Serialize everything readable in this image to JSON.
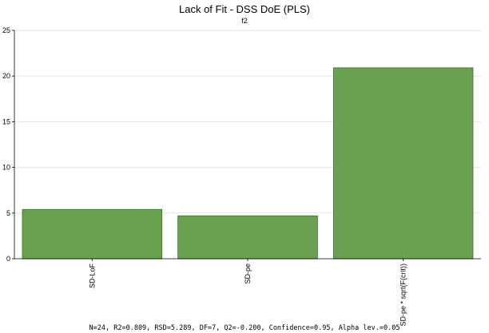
{
  "chart_data": {
    "type": "bar",
    "title": "Lack of Fit - DSS DoE (PLS)",
    "subtitle": "f2",
    "categories": [
      "SD-LoF",
      "SD-pe",
      "SD-pe * sqrt(F(crit))"
    ],
    "values": [
      5.4,
      4.7,
      20.9
    ],
    "ylim": [
      0,
      25
    ],
    "yticks": [
      0,
      5,
      10,
      15,
      20,
      25
    ],
    "bar_color": "#6aa150",
    "grid": true,
    "footer": "N=24, R2=0.809, RSD=5.289, DF=7, Q2=-0.200, Confidence=0.95, Alpha lev.=0.05"
  }
}
